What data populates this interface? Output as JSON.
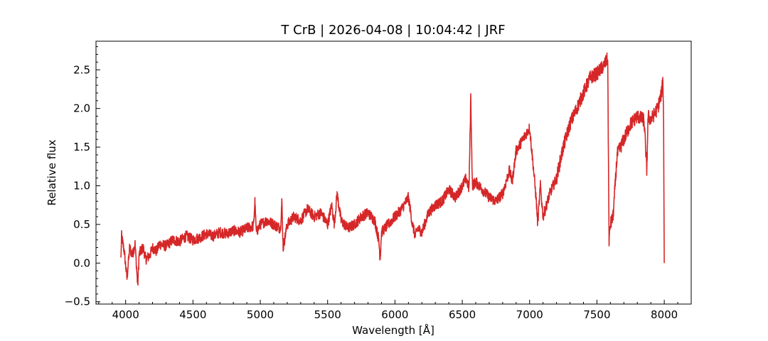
{
  "chart_data": {
    "type": "line",
    "title": "T CrB | 2026-04-08 | 10:04:42 | JRF",
    "xlabel": "Wavelength [Å]",
    "ylabel": "Relative flux",
    "xlim": [
      3780,
      8200
    ],
    "ylim": [
      -0.53,
      2.87
    ],
    "xticks": [
      4000,
      4500,
      5000,
      5500,
      6000,
      6500,
      7000,
      7500,
      8000
    ],
    "yticks": [
      -0.5,
      0.0,
      0.5,
      1.0,
      1.5,
      2.0,
      2.5
    ],
    "ytick_labels": [
      "−0.5",
      "0.0",
      "0.5",
      "1.0",
      "1.5",
      "2.0",
      "2.5"
    ],
    "grid": false,
    "series": [
      {
        "color": "#d62728",
        "x": [
          3965,
          3970,
          3990,
          4010,
          4030,
          4050,
          4070,
          4090,
          4100,
          4110,
          4130,
          4150,
          4180,
          4200,
          4230,
          4250,
          4300,
          4350,
          4400,
          4450,
          4500,
          4550,
          4600,
          4650,
          4700,
          4750,
          4800,
          4850,
          4900,
          4950,
          4960,
          4970,
          5000,
          5050,
          5100,
          5150,
          5160,
          5170,
          5200,
          5250,
          5300,
          5350,
          5400,
          5450,
          5500,
          5530,
          5550,
          5570,
          5600,
          5650,
          5700,
          5750,
          5800,
          5850,
          5880,
          5890,
          5900,
          5950,
          6000,
          6050,
          6100,
          6130,
          6150,
          6170,
          6200,
          6250,
          6300,
          6350,
          6400,
          6450,
          6500,
          6530,
          6550,
          6563,
          6575,
          6600,
          6650,
          6700,
          6750,
          6800,
          6850,
          6870,
          6900,
          6950,
          7000,
          7030,
          7050,
          7060,
          7080,
          7100,
          7150,
          7200,
          7250,
          7300,
          7350,
          7400,
          7450,
          7500,
          7550,
          7580,
          7590,
          7600,
          7620,
          7650,
          7700,
          7750,
          7800,
          7850,
          7870,
          7880,
          7900,
          7950,
          7980,
          7990,
          7995,
          8000
        ],
        "y": [
          0.05,
          0.35,
          0.15,
          -0.2,
          0.2,
          0.1,
          0.25,
          -0.3,
          0.1,
          0.15,
          0.2,
          0.05,
          0.1,
          0.2,
          0.15,
          0.25,
          0.22,
          0.3,
          0.28,
          0.35,
          0.3,
          0.33,
          0.38,
          0.35,
          0.4,
          0.38,
          0.42,
          0.4,
          0.45,
          0.48,
          0.8,
          0.4,
          0.5,
          0.55,
          0.5,
          0.45,
          0.8,
          0.2,
          0.5,
          0.6,
          0.55,
          0.7,
          0.6,
          0.65,
          0.5,
          0.75,
          0.5,
          0.9,
          0.55,
          0.45,
          0.5,
          0.6,
          0.65,
          0.55,
          0.3,
          0.05,
          0.4,
          0.5,
          0.6,
          0.7,
          0.85,
          0.5,
          0.35,
          0.45,
          0.4,
          0.65,
          0.75,
          0.8,
          0.95,
          0.85,
          1.0,
          1.1,
          0.95,
          2.15,
          1.0,
          1.05,
          0.95,
          0.85,
          0.8,
          0.9,
          1.2,
          1.05,
          1.45,
          1.6,
          1.75,
          1.2,
          0.8,
          0.5,
          1.0,
          0.6,
          0.9,
          1.1,
          1.5,
          1.8,
          2.0,
          2.2,
          2.4,
          2.45,
          2.55,
          2.65,
          0.3,
          0.5,
          0.6,
          1.4,
          1.6,
          1.8,
          1.9,
          1.85,
          1.2,
          1.9,
          1.85,
          2.0,
          2.2,
          2.4,
          1.8,
          0.0
        ]
      }
    ]
  }
}
